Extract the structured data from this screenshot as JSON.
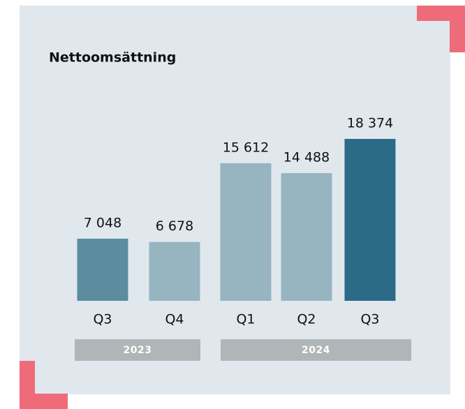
{
  "chart_data": {
    "type": "bar",
    "title": "Nettoomsättning",
    "groups": [
      {
        "name": "2023",
        "categories": [
          "Q3",
          "Q4"
        ],
        "values": [
          7048,
          6678
        ],
        "value_labels": [
          "7 048",
          "6 678"
        ],
        "colors": [
          "#5b8ca0",
          "#97b4c1"
        ]
      },
      {
        "name": "2024",
        "categories": [
          "Q1",
          "Q2",
          "Q3"
        ],
        "values": [
          15612,
          14488,
          18374
        ],
        "value_labels": [
          "15 612",
          "14 488",
          "18 374"
        ],
        "colors": [
          "#97b4c1",
          "#97b4c1",
          "#2c6b87"
        ]
      }
    ]
  }
}
